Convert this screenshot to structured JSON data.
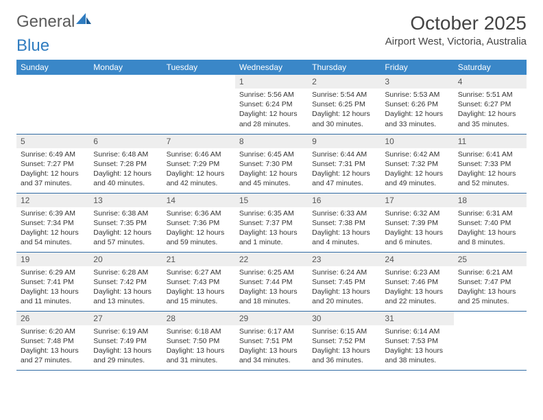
{
  "colors": {
    "header_bg": "#3a87c8",
    "header_text": "#ffffff",
    "daynum_bg": "#eeeeee",
    "row_border": "#2f6aa3",
    "logo_gray": "#5a5a5a",
    "logo_blue": "#2f7cc0",
    "body_text": "#333333",
    "page_bg": "#ffffff"
  },
  "typography": {
    "title_fontsize": 28,
    "location_fontsize": 15,
    "weekday_fontsize": 12,
    "cell_fontsize": 10.5
  },
  "logo": {
    "text_gray": "General",
    "text_blue": "Blue"
  },
  "title": "October 2025",
  "location": "Airport West, Victoria, Australia",
  "weekdays": [
    "Sunday",
    "Monday",
    "Tuesday",
    "Wednesday",
    "Thursday",
    "Friday",
    "Saturday"
  ],
  "weeks": [
    [
      null,
      null,
      null,
      {
        "n": "1",
        "sr": "Sunrise: 5:56 AM",
        "ss": "Sunset: 6:24 PM",
        "d1": "Daylight: 12 hours",
        "d2": "and 28 minutes."
      },
      {
        "n": "2",
        "sr": "Sunrise: 5:54 AM",
        "ss": "Sunset: 6:25 PM",
        "d1": "Daylight: 12 hours",
        "d2": "and 30 minutes."
      },
      {
        "n": "3",
        "sr": "Sunrise: 5:53 AM",
        "ss": "Sunset: 6:26 PM",
        "d1": "Daylight: 12 hours",
        "d2": "and 33 minutes."
      },
      {
        "n": "4",
        "sr": "Sunrise: 5:51 AM",
        "ss": "Sunset: 6:27 PM",
        "d1": "Daylight: 12 hours",
        "d2": "and 35 minutes."
      }
    ],
    [
      {
        "n": "5",
        "sr": "Sunrise: 6:49 AM",
        "ss": "Sunset: 7:27 PM",
        "d1": "Daylight: 12 hours",
        "d2": "and 37 minutes."
      },
      {
        "n": "6",
        "sr": "Sunrise: 6:48 AM",
        "ss": "Sunset: 7:28 PM",
        "d1": "Daylight: 12 hours",
        "d2": "and 40 minutes."
      },
      {
        "n": "7",
        "sr": "Sunrise: 6:46 AM",
        "ss": "Sunset: 7:29 PM",
        "d1": "Daylight: 12 hours",
        "d2": "and 42 minutes."
      },
      {
        "n": "8",
        "sr": "Sunrise: 6:45 AM",
        "ss": "Sunset: 7:30 PM",
        "d1": "Daylight: 12 hours",
        "d2": "and 45 minutes."
      },
      {
        "n": "9",
        "sr": "Sunrise: 6:44 AM",
        "ss": "Sunset: 7:31 PM",
        "d1": "Daylight: 12 hours",
        "d2": "and 47 minutes."
      },
      {
        "n": "10",
        "sr": "Sunrise: 6:42 AM",
        "ss": "Sunset: 7:32 PM",
        "d1": "Daylight: 12 hours",
        "d2": "and 49 minutes."
      },
      {
        "n": "11",
        "sr": "Sunrise: 6:41 AM",
        "ss": "Sunset: 7:33 PM",
        "d1": "Daylight: 12 hours",
        "d2": "and 52 minutes."
      }
    ],
    [
      {
        "n": "12",
        "sr": "Sunrise: 6:39 AM",
        "ss": "Sunset: 7:34 PM",
        "d1": "Daylight: 12 hours",
        "d2": "and 54 minutes."
      },
      {
        "n": "13",
        "sr": "Sunrise: 6:38 AM",
        "ss": "Sunset: 7:35 PM",
        "d1": "Daylight: 12 hours",
        "d2": "and 57 minutes."
      },
      {
        "n": "14",
        "sr": "Sunrise: 6:36 AM",
        "ss": "Sunset: 7:36 PM",
        "d1": "Daylight: 12 hours",
        "d2": "and 59 minutes."
      },
      {
        "n": "15",
        "sr": "Sunrise: 6:35 AM",
        "ss": "Sunset: 7:37 PM",
        "d1": "Daylight: 13 hours",
        "d2": "and 1 minute."
      },
      {
        "n": "16",
        "sr": "Sunrise: 6:33 AM",
        "ss": "Sunset: 7:38 PM",
        "d1": "Daylight: 13 hours",
        "d2": "and 4 minutes."
      },
      {
        "n": "17",
        "sr": "Sunrise: 6:32 AM",
        "ss": "Sunset: 7:39 PM",
        "d1": "Daylight: 13 hours",
        "d2": "and 6 minutes."
      },
      {
        "n": "18",
        "sr": "Sunrise: 6:31 AM",
        "ss": "Sunset: 7:40 PM",
        "d1": "Daylight: 13 hours",
        "d2": "and 8 minutes."
      }
    ],
    [
      {
        "n": "19",
        "sr": "Sunrise: 6:29 AM",
        "ss": "Sunset: 7:41 PM",
        "d1": "Daylight: 13 hours",
        "d2": "and 11 minutes."
      },
      {
        "n": "20",
        "sr": "Sunrise: 6:28 AM",
        "ss": "Sunset: 7:42 PM",
        "d1": "Daylight: 13 hours",
        "d2": "and 13 minutes."
      },
      {
        "n": "21",
        "sr": "Sunrise: 6:27 AM",
        "ss": "Sunset: 7:43 PM",
        "d1": "Daylight: 13 hours",
        "d2": "and 15 minutes."
      },
      {
        "n": "22",
        "sr": "Sunrise: 6:25 AM",
        "ss": "Sunset: 7:44 PM",
        "d1": "Daylight: 13 hours",
        "d2": "and 18 minutes."
      },
      {
        "n": "23",
        "sr": "Sunrise: 6:24 AM",
        "ss": "Sunset: 7:45 PM",
        "d1": "Daylight: 13 hours",
        "d2": "and 20 minutes."
      },
      {
        "n": "24",
        "sr": "Sunrise: 6:23 AM",
        "ss": "Sunset: 7:46 PM",
        "d1": "Daylight: 13 hours",
        "d2": "and 22 minutes."
      },
      {
        "n": "25",
        "sr": "Sunrise: 6:21 AM",
        "ss": "Sunset: 7:47 PM",
        "d1": "Daylight: 13 hours",
        "d2": "and 25 minutes."
      }
    ],
    [
      {
        "n": "26",
        "sr": "Sunrise: 6:20 AM",
        "ss": "Sunset: 7:48 PM",
        "d1": "Daylight: 13 hours",
        "d2": "and 27 minutes."
      },
      {
        "n": "27",
        "sr": "Sunrise: 6:19 AM",
        "ss": "Sunset: 7:49 PM",
        "d1": "Daylight: 13 hours",
        "d2": "and 29 minutes."
      },
      {
        "n": "28",
        "sr": "Sunrise: 6:18 AM",
        "ss": "Sunset: 7:50 PM",
        "d1": "Daylight: 13 hours",
        "d2": "and 31 minutes."
      },
      {
        "n": "29",
        "sr": "Sunrise: 6:17 AM",
        "ss": "Sunset: 7:51 PM",
        "d1": "Daylight: 13 hours",
        "d2": "and 34 minutes."
      },
      {
        "n": "30",
        "sr": "Sunrise: 6:15 AM",
        "ss": "Sunset: 7:52 PM",
        "d1": "Daylight: 13 hours",
        "d2": "and 36 minutes."
      },
      {
        "n": "31",
        "sr": "Sunrise: 6:14 AM",
        "ss": "Sunset: 7:53 PM",
        "d1": "Daylight: 13 hours",
        "d2": "and 38 minutes."
      },
      null
    ]
  ]
}
